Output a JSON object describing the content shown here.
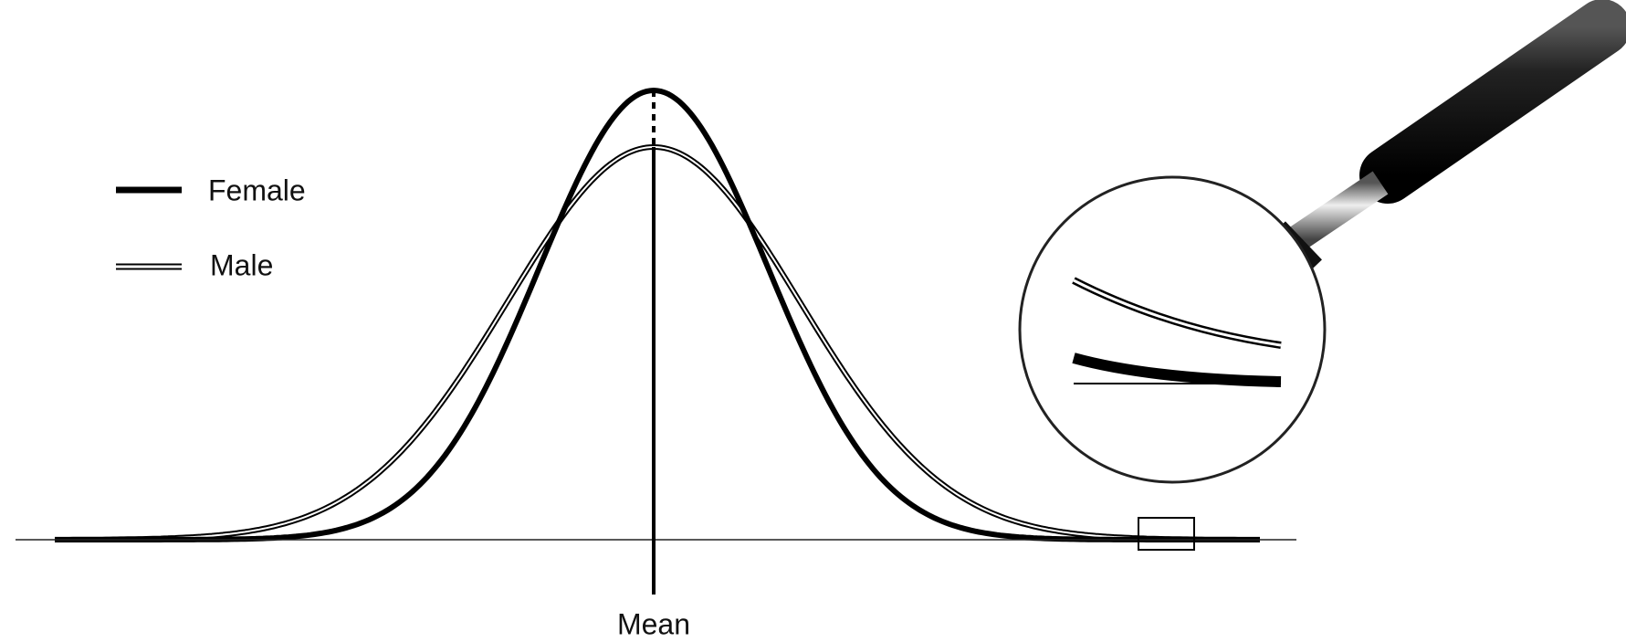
{
  "legend": [
    {
      "label": "Female"
    },
    {
      "label": "Male"
    }
  ],
  "axis_label": "Mean"
}
